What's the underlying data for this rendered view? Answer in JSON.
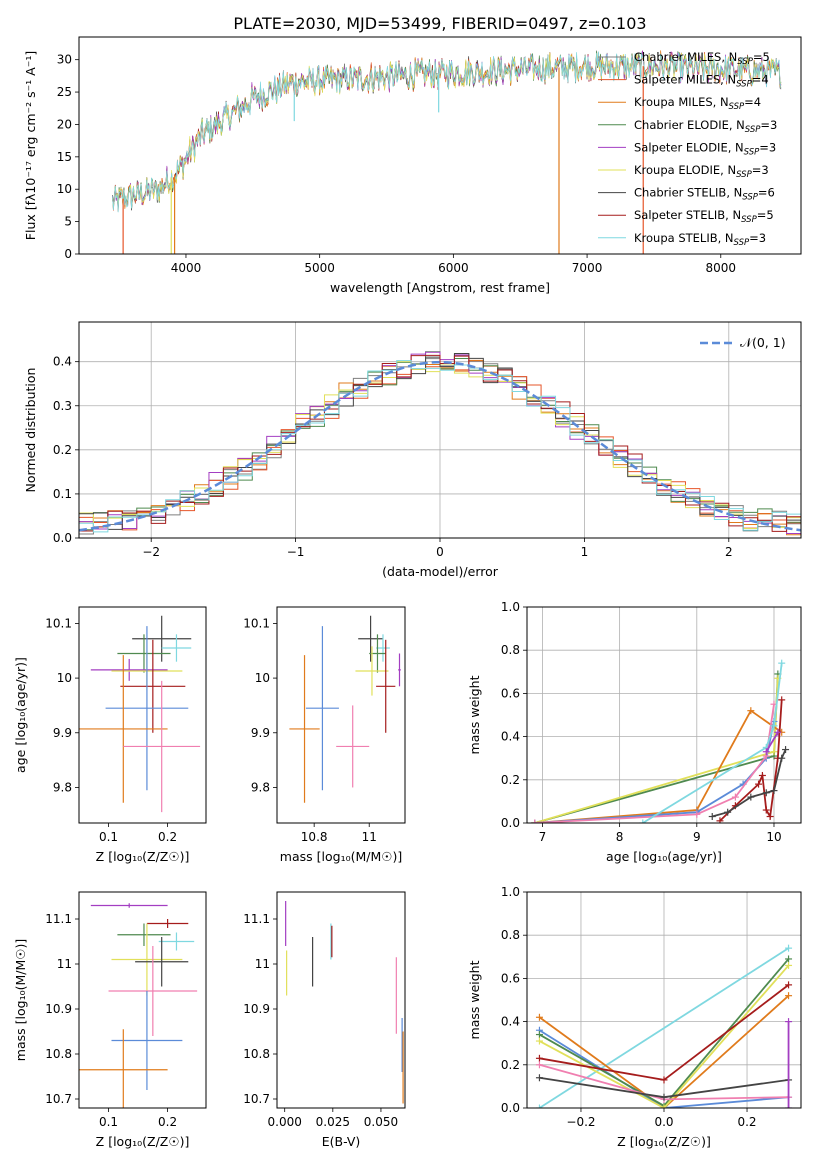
{
  "figure": {
    "title": "PLATE=2030, MJD=53499, FIBERID=0497, z=0.103"
  },
  "legend_entries": [
    {
      "label": "Chabrier MILES, N",
      "sub": "SSP",
      "suffix": "=5",
      "color": "#7f7f7f"
    },
    {
      "label": "Salpeter MILES, N",
      "sub": "SSP",
      "suffix": "=4",
      "color": "#e6562a"
    },
    {
      "label": "Kroupa MILES, N",
      "sub": "SSP",
      "suffix": "=4",
      "color": "#e07b1c"
    },
    {
      "label": "Chabrier ELODIE, N",
      "sub": "SSP",
      "suffix": "=3",
      "color": "#4f8a4f"
    },
    {
      "label": "Salpeter ELODIE, N",
      "sub": "SSP",
      "suffix": "=3",
      "color": "#a33ec2"
    },
    {
      "label": "Kroupa ELODIE, N",
      "sub": "SSP",
      "suffix": "=3",
      "color": "#e1e05a"
    },
    {
      "label": "Chabrier STELIB, N",
      "sub": "SSP",
      "suffix": "=6",
      "color": "#444444"
    },
    {
      "label": "Salpeter STELIB, N",
      "sub": "SSP",
      "suffix": "=5",
      "color": "#a51c1c"
    },
    {
      "label": "Kroupa STELIB, N",
      "sub": "SSP",
      "suffix": "=3",
      "color": "#7fd8e0"
    }
  ],
  "chart_data": [
    {
      "id": "spectrum",
      "type": "line",
      "xlabel": "wavelength [Angstrom, rest frame]",
      "ylabel": "Flux [fλ10⁻¹⁷ erg cm⁻² s⁻¹ A⁻¹]",
      "xlim": [
        3200,
        8600
      ],
      "ylim": [
        0,
        33.5
      ],
      "xticks": [
        4000,
        5000,
        6000,
        7000,
        8000
      ],
      "yticks": [
        0,
        5,
        10,
        15,
        20,
        25,
        30
      ],
      "grid": false,
      "legend": "right",
      "continuum_points": [
        [
          3450,
          8
        ],
        [
          3600,
          9
        ],
        [
          3800,
          10
        ],
        [
          3950,
          13
        ],
        [
          4100,
          18
        ],
        [
          4300,
          21
        ],
        [
          4500,
          24
        ],
        [
          4800,
          26.5
        ],
        [
          5200,
          27
        ],
        [
          5600,
          27.5
        ],
        [
          6000,
          28
        ],
        [
          6500,
          28.5
        ],
        [
          7000,
          29
        ],
        [
          7500,
          29
        ],
        [
          8000,
          28.5
        ],
        [
          8450,
          28
        ]
      ],
      "dips": [
        [
          3720,
          0
        ],
        [
          3890,
          0
        ],
        [
          3910,
          0
        ],
        [
          6790,
          0
        ],
        [
          7420,
          0
        ],
        [
          3530,
          0
        ],
        [
          4810,
          18
        ],
        [
          5890,
          23
        ],
        [
          7260,
          25
        ]
      ]
    },
    {
      "id": "residuals",
      "type": "histogram",
      "xlabel": "(data-model)/error",
      "ylabel": "Normed distribution",
      "xlim": [
        -2.5,
        2.5
      ],
      "ylim": [
        0,
        0.49
      ],
      "xticks": [
        -2,
        -1,
        0,
        1,
        2
      ],
      "yticks": [
        0.0,
        0.1,
        0.2,
        0.3,
        0.4
      ],
      "grid": true,
      "legend": "top-right",
      "normal_label": "𝒩(0, 1)",
      "normal_color": "#5b8bd8"
    },
    {
      "id": "age_vs_Z",
      "type": "errorbar",
      "xlabel": "Z [log₁₀(Z/Z☉)]",
      "ylabel": "age  [log₁₀(age/yr)]",
      "xlim": [
        0.05,
        0.265
      ],
      "ylim": [
        9.735,
        10.13
      ],
      "xticks": [
        0.1,
        0.2
      ],
      "yticks": [
        9.8,
        9.9,
        10.0,
        10.1
      ],
      "grid": false,
      "points": [
        {
          "x": 0.19,
          "xerr": 0.05,
          "y": 10.072,
          "yerr": 0.042,
          "color": "#444444"
        },
        {
          "x": 0.215,
          "xerr": 0.025,
          "y": 10.055,
          "yerr": 0.025,
          "color": "#7fd8e0"
        },
        {
          "x": 0.16,
          "xerr": 0.045,
          "y": 10.045,
          "yerr": 0.035,
          "color": "#4f8a4f"
        },
        {
          "x": 0.135,
          "xerr": 0.065,
          "y": 10.015,
          "yerr": 0.02,
          "color": "#a33ec2"
        },
        {
          "x": 0.165,
          "xerr": 0.06,
          "y": 10.013,
          "yerr": 0.035,
          "color": "#e1e05a"
        },
        {
          "x": 0.175,
          "xerr": 0.055,
          "y": 9.985,
          "yerr": 0.085,
          "color": "#a51c1c"
        },
        {
          "x": 0.165,
          "xerr": 0.07,
          "y": 9.945,
          "yerr": 0.15,
          "color": "#5b8bd8"
        },
        {
          "x": 0.125,
          "xerr": 0.075,
          "y": 9.907,
          "yerr": 0.135,
          "color": "#e07b1c"
        },
        {
          "x": 0.19,
          "xerr": 0.065,
          "y": 9.875,
          "yerr": 0.12,
          "color": "#f07fb0"
        }
      ]
    },
    {
      "id": "age_vs_mass",
      "type": "errorbar",
      "xlabel": "mass [log₁₀(M/M☉)]",
      "ylabel": "",
      "xlim": [
        10.665,
        11.13
      ],
      "ylim": [
        9.735,
        10.13
      ],
      "xticks": [
        10.8,
        11.0
      ],
      "yticks": [
        9.8,
        9.9,
        10.0,
        10.1
      ],
      "grid": false,
      "points": [
        {
          "x": 11.005,
          "xerr": 0.045,
          "y": 10.072,
          "yerr": 0.042,
          "color": "#444444"
        },
        {
          "x": 11.05,
          "xerr": 0.025,
          "y": 10.055,
          "yerr": 0.025,
          "color": "#7fd8e0"
        },
        {
          "x": 11.03,
          "xerr": 0.03,
          "y": 10.045,
          "yerr": 0.035,
          "color": "#4f8a4f"
        },
        {
          "x": 11.11,
          "xerr": 0.005,
          "y": 10.015,
          "yerr": 0.03,
          "color": "#a33ec2"
        },
        {
          "x": 11.01,
          "xerr": 0.06,
          "y": 10.013,
          "yerr": 0.045,
          "color": "#e1e05a"
        },
        {
          "x": 11.06,
          "xerr": 0.035,
          "y": 9.985,
          "yerr": 0.085,
          "color": "#a51c1c"
        },
        {
          "x": 10.83,
          "xerr": 0.06,
          "y": 9.945,
          "yerr": 0.15,
          "color": "#5b8bd8"
        },
        {
          "x": 10.765,
          "xerr": 0.055,
          "y": 9.907,
          "yerr": 0.135,
          "color": "#e07b1c"
        },
        {
          "x": 10.94,
          "xerr": 0.06,
          "y": 9.875,
          "yerr": 0.075,
          "color": "#f07fb0"
        }
      ]
    },
    {
      "id": "weight_vs_age",
      "type": "line",
      "xlabel": "age  [log₁₀(age/yr)]",
      "ylabel": "mass weight",
      "xlim": [
        6.8,
        10.35
      ],
      "ylim": [
        0,
        1.0
      ],
      "xticks": [
        7,
        8,
        9,
        10
      ],
      "yticks": [
        0.0,
        0.2,
        0.4,
        0.6,
        0.8,
        1.0
      ],
      "grid": true,
      "series": [
        {
          "color": "#4f8a4f",
          "points": [
            [
              6.9,
              0.0
            ],
            [
              10.0,
              0.31
            ],
            [
              10.05,
              0.69
            ]
          ]
        },
        {
          "color": "#e1e05a",
          "points": [
            [
              6.9,
              0.0
            ],
            [
              10.0,
              0.33
            ],
            [
              10.05,
              0.67
            ]
          ]
        },
        {
          "color": "#e07b1c",
          "points": [
            [
              6.9,
              0.0
            ],
            [
              9.0,
              0.06
            ],
            [
              9.7,
              0.52
            ],
            [
              10.1,
              0.42
            ]
          ]
        },
        {
          "color": "#5b8bd8",
          "points": [
            [
              6.9,
              0.0
            ],
            [
              9.0,
              0.05
            ],
            [
              9.6,
              0.18
            ],
            [
              9.9,
              0.3
            ],
            [
              10.0,
              0.47
            ]
          ]
        },
        {
          "color": "#f07fb0",
          "points": [
            [
              6.9,
              0.0
            ],
            [
              9.0,
              0.04
            ],
            [
              9.5,
              0.12
            ],
            [
              9.9,
              0.31
            ],
            [
              10.0,
              0.55
            ]
          ]
        },
        {
          "color": "#7fd8e0",
          "points": [
            [
              8.3,
              0.0
            ],
            [
              9.9,
              0.35
            ],
            [
              10.0,
              0.45
            ],
            [
              10.1,
              0.74
            ]
          ]
        },
        {
          "color": "#a51c1c",
          "points": [
            [
              9.3,
              0.01
            ],
            [
              9.5,
              0.08
            ],
            [
              9.8,
              0.18
            ],
            [
              9.85,
              0.22
            ],
            [
              9.9,
              0.06
            ],
            [
              9.95,
              0.03
            ],
            [
              10.05,
              0.3
            ],
            [
              10.1,
              0.57
            ]
          ]
        },
        {
          "color": "#444444",
          "points": [
            [
              9.2,
              0.03
            ],
            [
              9.4,
              0.05
            ],
            [
              9.7,
              0.12
            ],
            [
              9.9,
              0.14
            ],
            [
              10.0,
              0.15
            ],
            [
              10.1,
              0.3
            ],
            [
              10.15,
              0.34
            ]
          ]
        },
        {
          "color": "#a33ec2",
          "points": [
            [
              9.9,
              0.33
            ],
            [
              10.05,
              0.42
            ]
          ]
        }
      ]
    },
    {
      "id": "mass_vs_Z",
      "type": "errorbar",
      "xlabel": "Z [log₁₀(Z/Z☉)]",
      "ylabel": "mass [log₁₀(M/M☉)]",
      "xlim": [
        0.05,
        0.265
      ],
      "ylim": [
        10.68,
        11.16
      ],
      "xticks": [
        0.1,
        0.2
      ],
      "yticks": [
        10.7,
        10.8,
        10.9,
        11.0,
        11.1
      ],
      "grid": false,
      "points": [
        {
          "x": 0.135,
          "xerr": 0.065,
          "y": 11.13,
          "yerr": 0.005,
          "color": "#a33ec2"
        },
        {
          "x": 0.2,
          "xerr": 0.035,
          "y": 11.09,
          "yerr": 0.01,
          "color": "#a51c1c"
        },
        {
          "x": 0.16,
          "xerr": 0.045,
          "y": 11.065,
          "yerr": 0.025,
          "color": "#4f8a4f"
        },
        {
          "x": 0.215,
          "xerr": 0.03,
          "y": 11.05,
          "yerr": 0.02,
          "color": "#7fd8e0"
        },
        {
          "x": 0.165,
          "xerr": 0.06,
          "y": 11.01,
          "yerr": 0.08,
          "color": "#e1e05a"
        },
        {
          "x": 0.19,
          "xerr": 0.045,
          "y": 11.005,
          "yerr": 0.055,
          "color": "#444444"
        },
        {
          "x": 0.175,
          "xerr": 0.075,
          "y": 10.94,
          "yerr": 0.1,
          "color": "#f07fb0"
        },
        {
          "x": 0.165,
          "xerr": 0.06,
          "y": 10.83,
          "yerr": 0.11,
          "color": "#5b8bd8"
        },
        {
          "x": 0.125,
          "xerr": 0.075,
          "y": 10.765,
          "yerr": 0.09,
          "color": "#e07b1c"
        }
      ]
    },
    {
      "id": "mass_vs_ebv",
      "type": "errorbar",
      "xlabel": "E(B-V)",
      "ylabel": "",
      "xlim": [
        -0.004,
        0.0625
      ],
      "ylim": [
        10.68,
        11.16
      ],
      "xticks": [
        0.0,
        0.025,
        0.05
      ],
      "xtick_labels": [
        "0.000",
        "0.025",
        "0.050"
      ],
      "yticks": [
        10.7,
        10.8,
        10.9,
        11.0,
        11.1
      ],
      "grid": false,
      "points": [
        {
          "x": 0.0005,
          "xerr": 0,
          "y": 11.09,
          "yerr": 0.05,
          "color": "#a33ec2"
        },
        {
          "x": 0.001,
          "xerr": 0,
          "y": 10.98,
          "yerr": 0.05,
          "color": "#e1e05a"
        },
        {
          "x": 0.0145,
          "xerr": 0,
          "y": 11.005,
          "yerr": 0.055,
          "color": "#444444"
        },
        {
          "x": 0.024,
          "xerr": 0,
          "y": 11.05,
          "yerr": 0.04,
          "color": "#7fd8e0"
        },
        {
          "x": 0.0245,
          "xerr": 0,
          "y": 11.05,
          "yerr": 0.035,
          "color": "#a51c1c"
        },
        {
          "x": 0.058,
          "xerr": 0,
          "y": 10.93,
          "yerr": 0.085,
          "color": "#f07fb0"
        },
        {
          "x": 0.061,
          "xerr": 0,
          "y": 10.82,
          "yerr": 0.06,
          "color": "#5b8bd8"
        },
        {
          "x": 0.0615,
          "xerr": 0,
          "y": 10.77,
          "yerr": 0.08,
          "color": "#e07b1c"
        }
      ]
    },
    {
      "id": "weight_vs_Z",
      "type": "line",
      "xlabel": "Z [log₁₀(Z/Z☉)]",
      "ylabel": "mass weight",
      "xlim": [
        -0.33,
        0.33
      ],
      "ylim": [
        0,
        1.0
      ],
      "xticks": [
        -0.2,
        0.0,
        0.2
      ],
      "xtick_labels": [
        "−0.2",
        "0.0",
        "0.2"
      ],
      "yticks": [
        0.0,
        0.2,
        0.4,
        0.6,
        0.8,
        1.0
      ],
      "grid": true,
      "series": [
        {
          "color": "#7fd8e0",
          "points": [
            [
              -0.3,
              0.0
            ],
            [
              0.3,
              0.74
            ]
          ]
        },
        {
          "color": "#e07b1c",
          "points": [
            [
              -0.3,
              0.42
            ],
            [
              0.0,
              0.0
            ],
            [
              0.3,
              0.52
            ]
          ]
        },
        {
          "color": "#5b8bd8",
          "points": [
            [
              -0.3,
              0.36
            ],
            [
              0.0,
              0.0
            ],
            [
              0.3,
              0.05
            ]
          ]
        },
        {
          "color": "#4f8a4f",
          "points": [
            [
              -0.3,
              0.34
            ],
            [
              0.0,
              0.01
            ],
            [
              0.3,
              0.69
            ]
          ]
        },
        {
          "color": "#e1e05a",
          "points": [
            [
              -0.3,
              0.31
            ],
            [
              0.0,
              0.0
            ],
            [
              0.3,
              0.66
            ]
          ]
        },
        {
          "color": "#a51c1c",
          "points": [
            [
              -0.3,
              0.23
            ],
            [
              0.0,
              0.13
            ],
            [
              0.3,
              0.57
            ]
          ]
        },
        {
          "color": "#f07fb0",
          "points": [
            [
              -0.3,
              0.2
            ],
            [
              0.0,
              0.04
            ],
            [
              0.3,
              0.05
            ]
          ]
        },
        {
          "color": "#444444",
          "points": [
            [
              -0.3,
              0.14
            ],
            [
              0.0,
              0.05
            ],
            [
              0.3,
              0.13
            ]
          ]
        },
        {
          "color": "#a33ec2",
          "points": [
            [
              0.3,
              0.4
            ],
            [
              0.3,
              0.0
            ]
          ]
        }
      ]
    }
  ]
}
